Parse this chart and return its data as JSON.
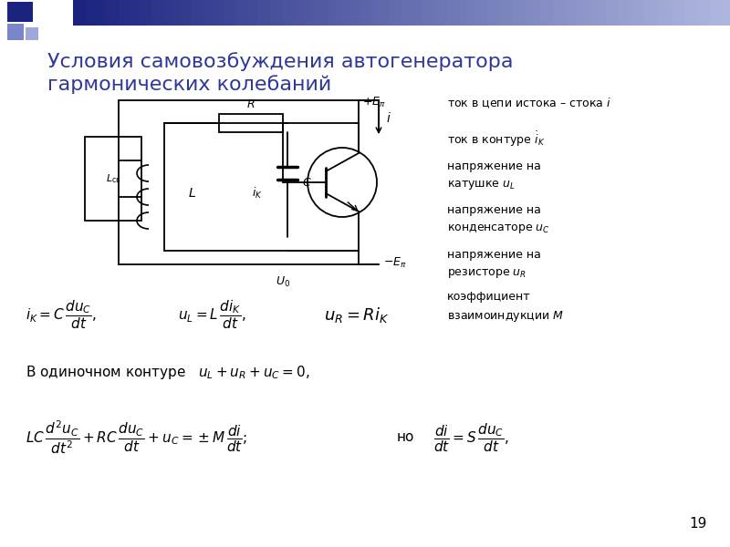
{
  "title_line1": "Условия самовозбуждения автогенератора",
  "title_line2": "гармонических колебаний",
  "title_color": "#2E3899",
  "bg_color": "#FFFFFF",
  "page_num": "19"
}
